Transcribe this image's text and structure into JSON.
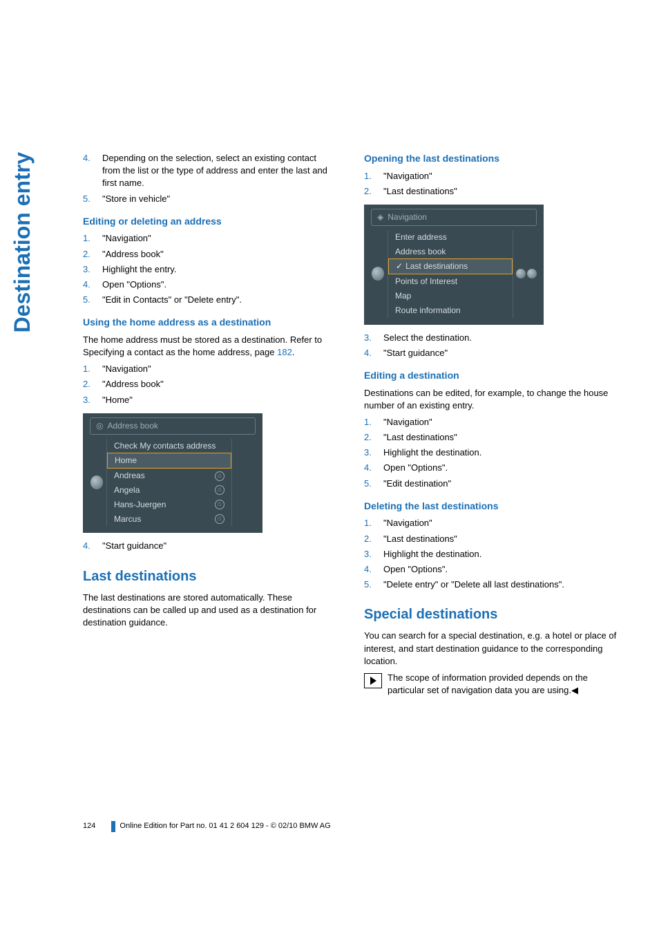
{
  "side_tab": "Destination entry",
  "left": {
    "list1": [
      {
        "n": "4.",
        "t": "Depending on the selection, select an existing contact from the list or the type of address and enter the last and first name."
      },
      {
        "n": "5.",
        "t": "\"Store in vehicle\""
      }
    ],
    "h_edit": "Editing or deleting an address",
    "list2": [
      {
        "n": "1.",
        "t": "\"Navigation\""
      },
      {
        "n": "2.",
        "t": "\"Address book\""
      },
      {
        "n": "3.",
        "t": "Highlight the entry."
      },
      {
        "n": "4.",
        "t": "Open \"Options\"."
      },
      {
        "n": "5.",
        "t": "\"Edit in Contacts\" or \"Delete entry\"."
      }
    ],
    "h_home": "Using the home address as a destination",
    "p_home_a": "The home address must be stored as a destination. Refer to Specifying a contact as the home address, page ",
    "p_home_link": "182",
    "p_home_b": ".",
    "list3": [
      {
        "n": "1.",
        "t": "\"Navigation\""
      },
      {
        "n": "2.",
        "t": "\"Address book\""
      },
      {
        "n": "3.",
        "t": "\"Home\""
      }
    ],
    "shot1": {
      "title_icon": "globe-icon",
      "title": "Address book",
      "rows": [
        {
          "label": "Check My contacts address",
          "sel": false,
          "icon": ""
        },
        {
          "label": "Home",
          "sel": true,
          "icon": ""
        },
        {
          "label": "Andreas",
          "sel": false,
          "icon": "home"
        },
        {
          "label": "Angela",
          "sel": false,
          "icon": "home"
        },
        {
          "label": "Hans-Juergen",
          "sel": false,
          "icon": "home"
        },
        {
          "label": "Marcus",
          "sel": false,
          "icon": "home"
        }
      ]
    },
    "list4": [
      {
        "n": "4.",
        "t": "\"Start guidance\""
      }
    ],
    "h_last": "Last destinations",
    "p_last": "The last destinations are stored automatically. These destinations can be called up and used as a destination for destination guidance."
  },
  "right": {
    "h_open": "Opening the last destinations",
    "list1": [
      {
        "n": "1.",
        "t": "\"Navigation\""
      },
      {
        "n": "2.",
        "t": "\"Last destinations\""
      }
    ],
    "shot2": {
      "title_icon": "nav-icon",
      "title": "Navigation",
      "rows": [
        {
          "label": "Enter address",
          "sel": false,
          "check": false
        },
        {
          "label": "Address book",
          "sel": false,
          "check": false
        },
        {
          "label": "Last destinations",
          "sel": true,
          "check": true
        },
        {
          "label": "Points of Interest",
          "sel": false,
          "check": false
        },
        {
          "label": "Map",
          "sel": false,
          "check": false
        },
        {
          "label": "Route information",
          "sel": false,
          "check": false
        }
      ]
    },
    "list2": [
      {
        "n": "3.",
        "t": "Select the destination."
      },
      {
        "n": "4.",
        "t": "\"Start guidance\""
      }
    ],
    "h_editd": "Editing a destination",
    "p_editd": "Destinations can be edited, for example, to change the house number of an existing entry.",
    "list3": [
      {
        "n": "1.",
        "t": "\"Navigation\""
      },
      {
        "n": "2.",
        "t": "\"Last destinations\""
      },
      {
        "n": "3.",
        "t": "Highlight the destination."
      },
      {
        "n": "4.",
        "t": "Open \"Options\"."
      },
      {
        "n": "5.",
        "t": "\"Edit destination\""
      }
    ],
    "h_del": "Deleting the last destinations",
    "list4": [
      {
        "n": "1.",
        "t": "\"Navigation\""
      },
      {
        "n": "2.",
        "t": "\"Last destinations\""
      },
      {
        "n": "3.",
        "t": "Highlight the destination."
      },
      {
        "n": "4.",
        "t": "Open \"Options\"."
      },
      {
        "n": "5.",
        "t": "\"Delete entry\" or \"Delete all last destinations\"."
      }
    ],
    "h_special": "Special destinations",
    "p_special": "You can search for a special destination, e.g. a hotel or place of interest, and start destination guidance to the corresponding location.",
    "note": "The scope of information provided depends on the particular set of navigation data you are using.◀"
  },
  "footer": {
    "page": "124",
    "line": "Online Edition for Part no. 01 41 2 604 129 - © 02/10 BMW AG"
  }
}
